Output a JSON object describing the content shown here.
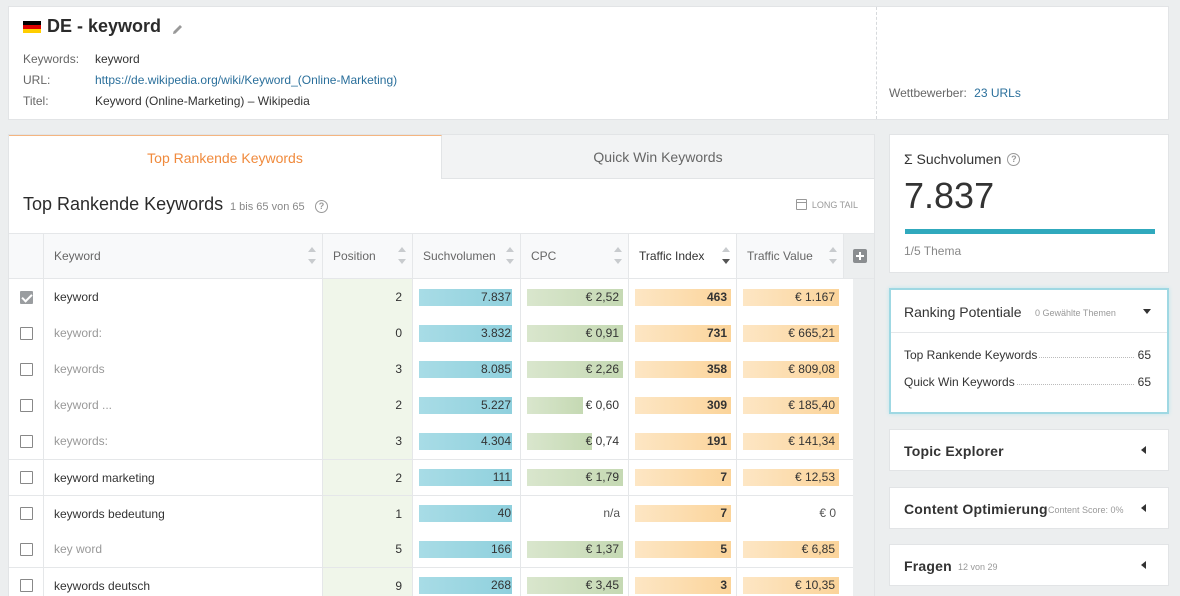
{
  "header": {
    "title": "DE - keyword",
    "fields": [
      {
        "label": "Keywords:",
        "value": "keyword"
      },
      {
        "label": "URL:",
        "value": "https://de.wikipedia.org/wiki/Keyword_(Online-Marketing)"
      },
      {
        "label": "Titel:",
        "value": "Keyword (Online-Marketing) – Wikipedia"
      }
    ],
    "competitors_label": "Wettbewerber:",
    "competitors_value": "23 URLs"
  },
  "tabs": [
    {
      "label": "Top Rankende Keywords",
      "active": true
    },
    {
      "label": "Quick Win Keywords",
      "active": false
    }
  ],
  "section": {
    "title": "Top Rankende Keywords",
    "count": "1 bis 65 von 65",
    "longtail": "LONG TAIL"
  },
  "table": {
    "columns": [
      "Keyword",
      "Position",
      "Suchvolumen",
      "CPC",
      "Traffic Index",
      "Traffic Value"
    ],
    "rows": [
      {
        "checked": true,
        "keyword": "keyword",
        "dim": false,
        "position": "2",
        "sv": "7.837",
        "sv_frac": 0.97,
        "cpc": "€ 2,52",
        "cpc_frac": 1.0,
        "ti": "463",
        "ti_frac": 1.0,
        "tv": "€ 1.167",
        "tv_frac": 1.0
      },
      {
        "checked": false,
        "keyword": "keyword:",
        "dim": true,
        "position": "0",
        "sv": "3.832",
        "sv_frac": 0.97,
        "cpc": "€ 0,91",
        "cpc_frac": 1.0,
        "ti": "731",
        "ti_frac": 1.0,
        "tv": "€ 665,21",
        "tv_frac": 1.0
      },
      {
        "checked": false,
        "keyword": "keywords",
        "dim": true,
        "position": "3",
        "sv": "8.085",
        "sv_frac": 0.97,
        "cpc": "€ 2,26",
        "cpc_frac": 1.0,
        "ti": "358",
        "ti_frac": 1.0,
        "tv": "€ 809,08",
        "tv_frac": 1.0
      },
      {
        "checked": false,
        "keyword": "keyword ...",
        "dim": true,
        "position": "2",
        "sv": "5.227",
        "sv_frac": 0.97,
        "cpc": "€ 0,60",
        "cpc_frac": 0.58,
        "ti": "309",
        "ti_frac": 1.0,
        "tv": "€ 185,40",
        "tv_frac": 1.0
      },
      {
        "checked": false,
        "keyword": "keywords:",
        "dim": true,
        "position": "3",
        "sv": "4.304",
        "sv_frac": 0.97,
        "cpc": "€ 0,74",
        "cpc_frac": 0.68,
        "ti": "191",
        "ti_frac": 1.0,
        "tv": "€ 141,34",
        "tv_frac": 1.0
      },
      {
        "checked": false,
        "keyword": "keyword marketing",
        "dim": false,
        "position": "2",
        "sv": "111",
        "sv_frac": 0.97,
        "cpc": "€ 1,79",
        "cpc_frac": 1.0,
        "ti": "7",
        "ti_frac": 1.0,
        "tv": "€ 12,53",
        "tv_frac": 1.0
      },
      {
        "checked": false,
        "keyword": "keywords bedeutung",
        "dim": false,
        "position": "1",
        "sv": "40",
        "sv_frac": 0.97,
        "cpc": "n/a",
        "cpc_frac": 0,
        "ti": "7",
        "ti_frac": 1.0,
        "tv": "€ 0",
        "tv_frac": 0
      },
      {
        "checked": false,
        "keyword": "key word",
        "dim": true,
        "position": "5",
        "sv": "166",
        "sv_frac": 0.97,
        "cpc": "€ 1,37",
        "cpc_frac": 1.0,
        "ti": "5",
        "ti_frac": 1.0,
        "tv": "€ 6,85",
        "tv_frac": 1.0
      },
      {
        "checked": false,
        "keyword": "keywords deutsch",
        "dim": false,
        "position": "9",
        "sv": "268",
        "sv_frac": 0.97,
        "cpc": "€ 3,45",
        "cpc_frac": 1.0,
        "ti": "3",
        "ti_frac": 1.0,
        "tv": "€ 10,35",
        "tv_frac": 1.0
      }
    ]
  },
  "suchvolumen": {
    "title": "Σ Suchvolumen",
    "value": "7.837",
    "theme": "1/5 Thema"
  },
  "ranking_potentiale": {
    "title": "Ranking Potentiale",
    "subtitle": "0 Gewählte Themen",
    "items": [
      {
        "label": "Top Rankende Keywords",
        "value": "65"
      },
      {
        "label": "Quick Win Keywords",
        "value": "65"
      }
    ]
  },
  "topic_explorer": {
    "title": "Topic Explorer"
  },
  "content_optimierung": {
    "title": "Content Optimierung",
    "subtitle": "Content Score: 0%"
  },
  "fragen": {
    "title": "Fragen",
    "subtitle": "12 von 29"
  },
  "colors": {
    "accent_orange": "#f08a3c",
    "link_blue": "#2a6f9b",
    "teal": "#30a9bd"
  }
}
